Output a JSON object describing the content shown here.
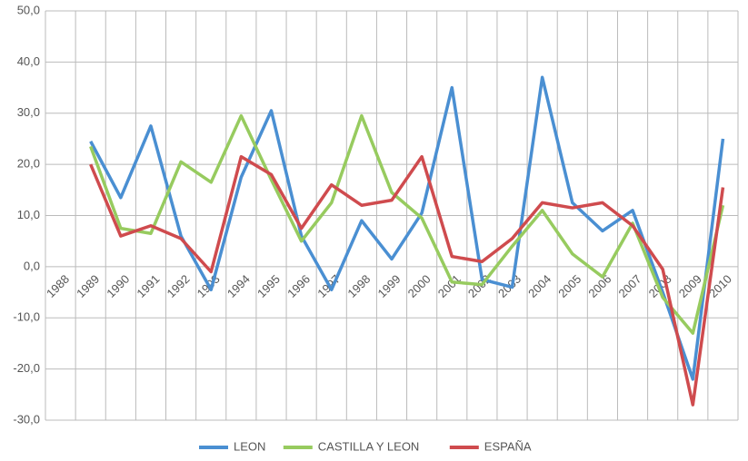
{
  "chart_data": {
    "type": "line",
    "categories": [
      "1988",
      "1989",
      "1990",
      "1991",
      "1992",
      "1993",
      "1994",
      "1995",
      "1996",
      "1997",
      "1998",
      "1999",
      "2000",
      "2001",
      "2002",
      "2003",
      "2004",
      "2005",
      "2006",
      "2007",
      "2008",
      "2009",
      "2010"
    ],
    "series": [
      {
        "name": "LEON",
        "color": "#4a8fd2",
        "values": [
          null,
          24.5,
          13.5,
          27.5,
          6,
          -4.5,
          17.5,
          30.5,
          6,
          -4.5,
          9,
          1.5,
          10.5,
          35,
          -2.5,
          -4,
          37,
          12.5,
          7,
          11,
          -5,
          -22,
          25
        ]
      },
      {
        "name": "CASTILLA Y LEON",
        "color": "#97cb5f",
        "values": [
          null,
          23.5,
          7.5,
          6.5,
          20.5,
          16.5,
          29.5,
          17,
          5,
          12.5,
          29.5,
          14.5,
          9.5,
          -3,
          -3.5,
          4,
          11,
          2.5,
          -2,
          8.5,
          -6,
          -13,
          12
        ]
      },
      {
        "name": "ESPAÑA",
        "color": "#cf4b4e",
        "values": [
          null,
          20,
          6,
          8,
          5.5,
          -1,
          21.5,
          18,
          7.5,
          16,
          12,
          13,
          21.5,
          2,
          1,
          5.5,
          12.5,
          11.5,
          12.5,
          8,
          -0.5,
          -27,
          15.5
        ]
      }
    ],
    "ylim": [
      -30,
      50
    ],
    "yticks": [
      {
        "value": -30,
        "label": "-30,0"
      },
      {
        "value": -20,
        "label": "-20,0"
      },
      {
        "value": -10,
        "label": "-10,0"
      },
      {
        "value": 0,
        "label": "0,0"
      },
      {
        "value": 10,
        "label": "10,0"
      },
      {
        "value": 20,
        "label": "20,0"
      },
      {
        "value": 30,
        "label": "30,0"
      },
      {
        "value": 40,
        "label": "40,0"
      },
      {
        "value": 50,
        "label": "50,0"
      }
    ],
    "grid": true,
    "legend": "bottom"
  }
}
